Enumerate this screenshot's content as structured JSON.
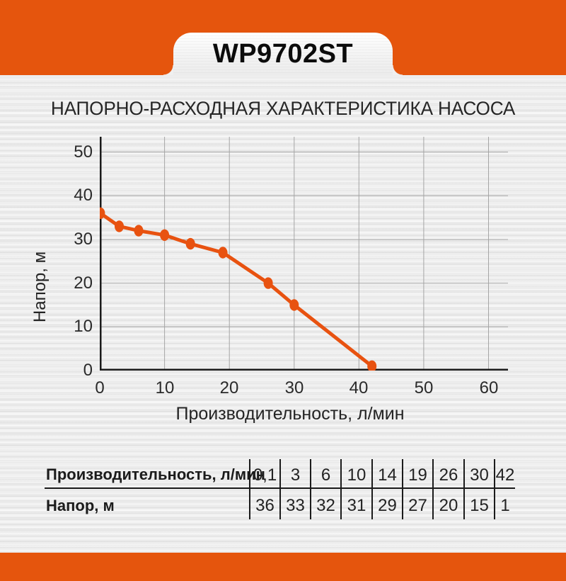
{
  "header": {
    "model": "WP9702ST"
  },
  "page": {
    "title": "НАПОРНО-РАСХОДНАЯ ХАРАКТЕРИСТИКА НАСОСА"
  },
  "colors": {
    "band_orange": "#E5550D",
    "line_orange": "#E85210",
    "axis_dark": "#1B1B1B",
    "grid_gray": "#A5A5A5",
    "text_dark": "#262626"
  },
  "chart_data": {
    "type": "line",
    "title": "НАПОРНО-РАСХОДНАЯ ХАРАКТЕРИСТИКА НАСОСА",
    "xlabel": "Производительность, л/мин",
    "ylabel": "Напор, м",
    "x": [
      0.1,
      3,
      6,
      10,
      14,
      19,
      26,
      30,
      42
    ],
    "y": [
      36,
      33,
      32,
      31,
      29,
      27,
      20,
      15,
      1
    ],
    "xlim": [
      0,
      63
    ],
    "ylim": [
      0,
      53.5
    ],
    "x_ticks": [
      0,
      10,
      20,
      30,
      40,
      50,
      60
    ],
    "y_ticks": [
      0,
      10,
      20,
      30,
      40,
      50
    ],
    "grid": true,
    "legend": false,
    "marker": "ellipse"
  },
  "table": {
    "rows": [
      {
        "label": "Производительность, л/мин",
        "values": [
          "0,1",
          "3",
          "6",
          "10",
          "14",
          "19",
          "26",
          "30",
          "42"
        ]
      },
      {
        "label": "Напор, м",
        "values": [
          "36",
          "33",
          "32",
          "31",
          "29",
          "27",
          "20",
          "15",
          "1"
        ]
      }
    ]
  }
}
